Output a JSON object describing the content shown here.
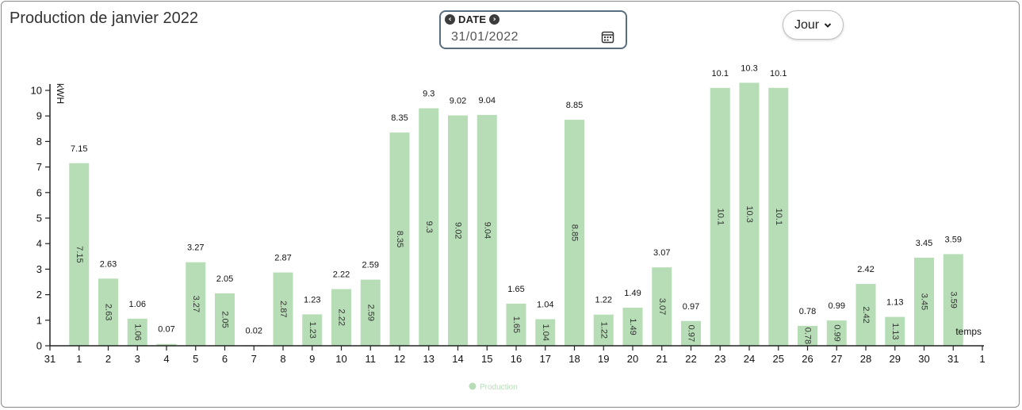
{
  "title": "Production de janvier 2022",
  "date_picker": {
    "label": "DATE",
    "value": "31/01/2022",
    "prev_icon": "arrow-left-circle-icon",
    "next_icon": "arrow-right-circle-icon",
    "calendar_icon": "calendar-icon"
  },
  "period_select": {
    "value": "Jour",
    "icon": "chevron-down-icon"
  },
  "colors": {
    "bar": "#b6ddb6",
    "legend": "#b8dcb8",
    "axis": "#222222"
  },
  "chart_data": {
    "type": "bar",
    "x_ticks": [
      "31",
      "1",
      "2",
      "3",
      "4",
      "5",
      "6",
      "7",
      "8",
      "9",
      "10",
      "11",
      "12",
      "13",
      "14",
      "15",
      "16",
      "17",
      "18",
      "19",
      "20",
      "21",
      "22",
      "23",
      "24",
      "25",
      "26",
      "27",
      "28",
      "29",
      "30",
      "31",
      "1"
    ],
    "categories": [
      "1",
      "2",
      "3",
      "4",
      "5",
      "6",
      "7",
      "8",
      "9",
      "10",
      "11",
      "12",
      "13",
      "14",
      "15",
      "16",
      "17",
      "18",
      "19",
      "20",
      "21",
      "22",
      "23",
      "24",
      "25",
      "26",
      "27",
      "28",
      "29",
      "30",
      "31"
    ],
    "series": [
      {
        "name": "Production",
        "values": [
          7.15,
          2.63,
          1.06,
          0.07,
          3.27,
          2.05,
          0.02,
          2.87,
          1.23,
          2.22,
          2.59,
          8.35,
          9.3,
          9.02,
          9.04,
          1.65,
          1.04,
          8.85,
          1.22,
          1.49,
          3.07,
          0.97,
          10.1,
          10.3,
          10.1,
          0.78,
          0.99,
          2.42,
          1.13,
          3.45,
          3.59
        ]
      }
    ],
    "ylabel": "kWH",
    "xlabel": "temps",
    "ylim": [
      0,
      10
    ],
    "y_ticks": [
      0,
      1,
      2,
      3,
      4,
      5,
      6,
      7,
      8,
      9,
      10
    ],
    "grid": false,
    "legend_position": "bottom-center"
  }
}
